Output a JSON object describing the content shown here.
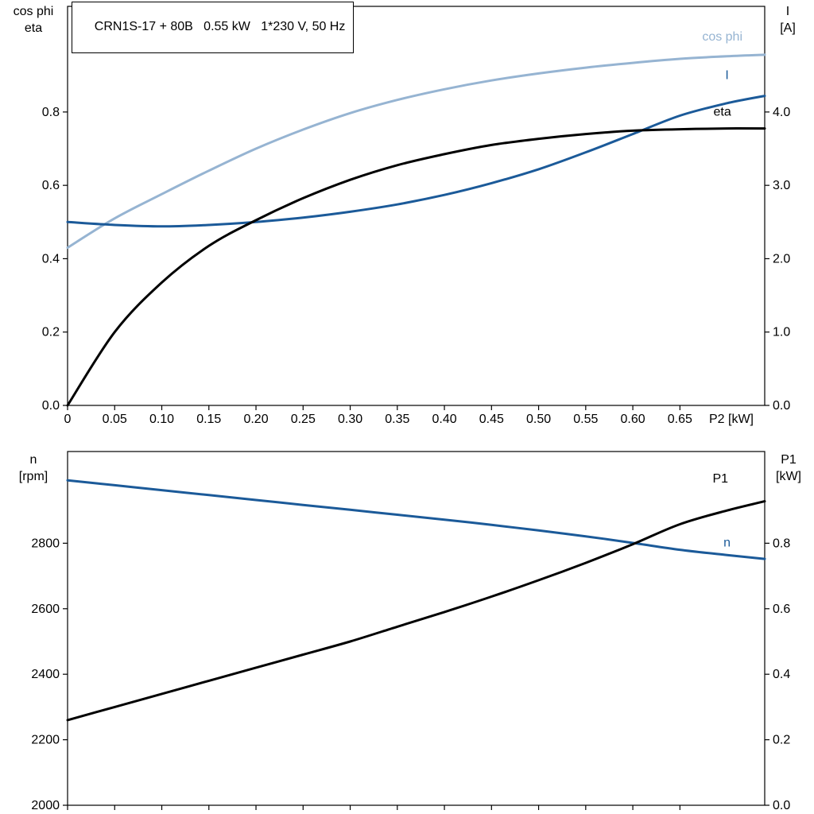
{
  "page": {
    "background": "#ffffff"
  },
  "colors": {
    "light_blue": "#96b4d2",
    "dark_blue": "#1b5a99",
    "black": "#000000",
    "axis": "#000000"
  },
  "chart_data": [
    {
      "type": "line",
      "title": "CRN1S-17 + 80B   0.55 kW   1*230 V, 50 Hz",
      "x_axis": {
        "title": "P2 [kW]",
        "min": 0,
        "max": 0.74,
        "tick_values": [
          0,
          0.05,
          0.1,
          0.15,
          0.2,
          0.25,
          0.3,
          0.35,
          0.4,
          0.45,
          0.5,
          0.55,
          0.6,
          0.65
        ],
        "tick_labels": [
          "0",
          "0.05",
          "0.10",
          "0.15",
          "0.20",
          "0.25",
          "0.30",
          "0.35",
          "0.40",
          "0.45",
          "0.50",
          "0.55",
          "0.60",
          "0.65"
        ]
      },
      "y_left": {
        "labels": [
          "cos phi",
          "eta"
        ],
        "min": 0,
        "max": 1.088,
        "tick_values": [
          0,
          0.2,
          0.4,
          0.6,
          0.8
        ],
        "tick_labels": [
          "0.0",
          "0.2",
          "0.4",
          "0.6",
          "0.8"
        ]
      },
      "y_right": {
        "labels": [
          "I",
          "[A]"
        ],
        "min": 0,
        "max": 5.44,
        "tick_values": [
          0,
          1,
          2,
          3,
          4
        ],
        "tick_labels": [
          "0.0",
          "1.0",
          "2.0",
          "3.0",
          "4.0"
        ]
      },
      "x": [
        0,
        0.05,
        0.1,
        0.15,
        0.2,
        0.25,
        0.3,
        0.35,
        0.4,
        0.45,
        0.5,
        0.55,
        0.6,
        0.65,
        0.7,
        0.74
      ],
      "series": [
        {
          "name": "cos phi",
          "axis": "left",
          "color": "#96b4d2",
          "width": 3,
          "values": [
            0.43,
            0.51,
            0.576,
            0.64,
            0.7,
            0.752,
            0.797,
            0.833,
            0.862,
            0.886,
            0.905,
            0.921,
            0.934,
            0.945,
            0.952,
            0.956
          ],
          "label": {
            "text": "cos phi",
            "x": 0.695,
            "y": 0.995,
            "axis": "left"
          }
        },
        {
          "name": "I",
          "axis": "right",
          "color": "#1b5a99",
          "width": 3,
          "values": [
            2.5,
            2.46,
            2.44,
            2.46,
            2.5,
            2.56,
            2.64,
            2.74,
            2.87,
            3.03,
            3.22,
            3.45,
            3.7,
            3.95,
            4.12,
            4.22
          ],
          "label": {
            "text": "I",
            "x": 0.7,
            "y": 4.45,
            "axis": "right"
          }
        },
        {
          "name": "eta",
          "axis": "left",
          "color": "#000000",
          "width": 3,
          "values": [
            0,
            0.2,
            0.335,
            0.435,
            0.505,
            0.565,
            0.615,
            0.655,
            0.685,
            0.71,
            0.727,
            0.74,
            0.749,
            0.753,
            0.755,
            0.755
          ],
          "label": {
            "text": "eta",
            "x": 0.695,
            "y": 0.79,
            "axis": "left"
          }
        }
      ]
    },
    {
      "type": "line",
      "title": "",
      "x_axis": {
        "title": "",
        "min": 0,
        "max": 0.74,
        "tick_values": [
          0,
          0.05,
          0.1,
          0.15,
          0.2,
          0.25,
          0.3,
          0.35,
          0.4,
          0.45,
          0.5,
          0.55,
          0.6,
          0.65
        ],
        "tick_labels": []
      },
      "y_left": {
        "labels": [
          "n",
          "[rpm]"
        ],
        "min": 2000,
        "max": 3080,
        "tick_values": [
          2000,
          2200,
          2400,
          2600,
          2800
        ],
        "tick_labels": [
          "2000",
          "2200",
          "2400",
          "2600",
          "2800"
        ]
      },
      "y_right": {
        "labels": [
          "P1",
          "[kW]"
        ],
        "min": 0,
        "max": 1.08,
        "tick_values": [
          0,
          0.2,
          0.4,
          0.6,
          0.8
        ],
        "tick_labels": [
          "0.0",
          "0.2",
          "0.4",
          "0.6",
          "0.8"
        ]
      },
      "x": [
        0,
        0.05,
        0.1,
        0.15,
        0.2,
        0.25,
        0.3,
        0.35,
        0.4,
        0.45,
        0.5,
        0.55,
        0.6,
        0.65,
        0.7,
        0.74
      ],
      "series": [
        {
          "name": "n",
          "axis": "left",
          "color": "#1b5a99",
          "width": 3,
          "values": [
            2992,
            2977,
            2962,
            2947,
            2932,
            2917,
            2902,
            2887,
            2872,
            2856,
            2839,
            2821,
            2801,
            2780,
            2764,
            2752
          ],
          "label": {
            "text": "n",
            "x": 0.7,
            "y": 2790,
            "axis": "left"
          }
        },
        {
          "name": "P1",
          "axis": "right",
          "color": "#000000",
          "width": 3,
          "values": [
            0.26,
            0.3,
            0.34,
            0.38,
            0.42,
            0.46,
            0.5,
            0.545,
            0.59,
            0.637,
            0.687,
            0.74,
            0.797,
            0.858,
            0.9,
            0.928
          ],
          "label": {
            "text": "P1",
            "x": 0.693,
            "y": 0.985,
            "axis": "right"
          }
        }
      ]
    }
  ]
}
